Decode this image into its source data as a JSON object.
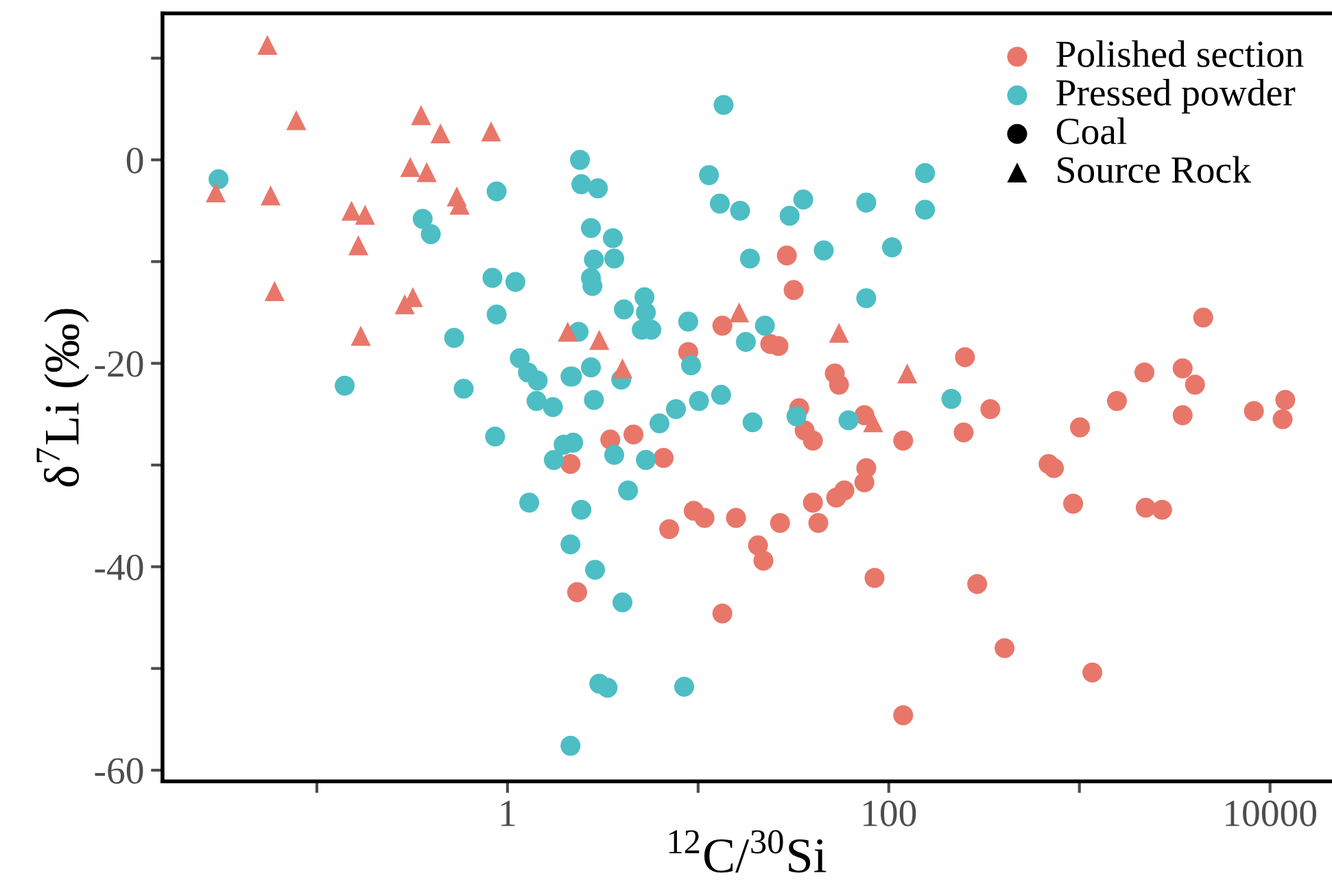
{
  "chart_data": {
    "type": "scatter",
    "xlabel": "$^{12}$C/$^{30}$Si",
    "ylabel": "δ$^{7}$Li (‰)",
    "log": "x",
    "grid": false,
    "legend": "top right",
    "xlim": [
      0.0155,
      20800
    ],
    "ylim": [
      -61.1,
      14.4
    ],
    "xticks": [
      {
        "value": 0.1,
        "label": null
      },
      1,
      {
        "value": 10,
        "label": null
      },
      100,
      {
        "value": 1000,
        "label": null
      },
      10000
    ],
    "yticks": [
      -60,
      {
        "value": -50,
        "label": null
      },
      -40,
      {
        "value": -30,
        "label": null
      },
      -20,
      {
        "value": -10,
        "label": null
      },
      0,
      {
        "value": 10,
        "label": null
      }
    ],
    "series": [
      {
        "name": "Polished section",
        "color": "#e8776a",
        "marker": "circle",
        "x": [
          2.14,
          2.32,
          29.2,
          31.7,
          13.4,
          23.9,
          26.4,
          8.87,
          52.1,
          54.8,
          251,
          33.9,
          3.46,
          4.58,
          6.59,
          36.2,
          40.0,
          74.5,
          119,
          247,
          7.05,
          9.48,
          10.8,
          15.8,
          26.9,
          20.6,
          22.0,
          40.0,
          42.7,
          53.0,
          58.5,
          76.2,
          74.5,
          84.2,
          13.4,
          119,
          291,
          341,
          1007,
          1574,
          3480,
          8230,
          11640,
          12020,
          689,
          735,
          927,
          2228,
          2715,
          405,
          1169,
          4460,
          2193,
          3480,
          4040
        ],
        "values": [
          -29.9,
          -42.5,
          -9.4,
          -12.8,
          -16.3,
          -18.1,
          -18.3,
          -18.9,
          -21.0,
          -22.1,
          -19.4,
          -24.4,
          -27.5,
          -27.0,
          -29.3,
          -26.6,
          -27.6,
          -25.1,
          -27.6,
          -26.8,
          -36.3,
          -34.5,
          -35.2,
          -35.2,
          -35.7,
          -37.9,
          -39.4,
          -33.7,
          -35.7,
          -33.2,
          -32.5,
          -30.3,
          -31.7,
          -41.1,
          -44.6,
          -54.6,
          -41.7,
          -24.5,
          -26.3,
          -23.7,
          -25.1,
          -24.7,
          -25.5,
          -23.6,
          -29.9,
          -30.3,
          -33.8,
          -34.2,
          -34.4,
          -48.0,
          -50.4,
          -15.5,
          -20.9,
          -20.5,
          -22.1
        ]
      },
      {
        "name": "Pressed powder",
        "color": "#4dbec4",
        "marker": "circle",
        "x": [
          0.0305,
          0.877,
          0.359,
          0.396,
          0.834,
          1.1,
          0.877,
          0.525,
          1.16,
          1.28,
          1.44,
          2.14,
          0.14,
          0.589,
          1.42,
          1.73,
          0.861,
          1.97,
          1.75,
          1.3,
          2.14,
          2.14,
          13.6,
          2.4,
          2.44,
          2.98,
          11.4,
          13.0,
          16.6,
          35.6,
          30.2,
          76.2,
          155,
          155,
          2.74,
          3.57,
          2.84,
          3.63,
          2.74,
          2.79,
          18.7,
          45.6,
          104,
          4.08,
          5.23,
          5.32,
          5.06,
          5.68,
          2.36,
          76.2,
          8.87,
          22.4,
          17.8,
          2.74,
          2.18,
          3.95,
          9.18,
          2.84,
          7.65,
          10.1,
          13.2,
          213,
          2.21,
          3.63,
          5.32,
          6.27,
          19.3,
          32.8,
          61.5,
          4.29,
          2.44,
          2.88,
          4.01,
          3.03,
          3.35,
          8.45
        ],
        "values": [
          -1.9,
          -3.1,
          -5.8,
          -7.3,
          -11.6,
          -12.0,
          -15.2,
          -17.5,
          -19.5,
          -20.9,
          -21.7,
          -21.3,
          -22.2,
          -22.5,
          -23.7,
          -24.3,
          -27.2,
          -28.0,
          -29.5,
          -33.7,
          -37.8,
          -57.6,
          5.4,
          0.0,
          -2.4,
          -2.8,
          -1.5,
          -4.3,
          -5.0,
          -3.9,
          -5.5,
          -4.2,
          -1.3,
          -4.9,
          -6.7,
          -7.7,
          -9.8,
          -9.7,
          -11.6,
          -12.4,
          -9.7,
          -8.9,
          -8.6,
          -14.7,
          -13.5,
          -15.0,
          -16.7,
          -16.7,
          -16.9,
          -13.6,
          -15.9,
          -16.3,
          -17.9,
          -20.4,
          -21.3,
          -21.6,
          -20.2,
          -23.6,
          -24.5,
          -23.7,
          -23.1,
          -23.5,
          -27.8,
          -29.0,
          -29.5,
          -25.9,
          -25.8,
          -25.2,
          -25.6,
          -32.5,
          -34.4,
          -40.3,
          -43.5,
          -51.5,
          -51.9,
          -51.8
        ]
      },
      {
        "color": "#e8776a",
        "marker": "triangle",
        "x": [
          0.055,
          0.078,
          0.352,
          0.445,
          0.82,
          0.309,
          0.377,
          0.0295,
          0.0572,
          0.542,
          0.561,
          0.152,
          0.179,
          0.165,
          0.06,
          0.319,
          0.289,
          0.17,
          2.07,
          3.03,
          4.01,
          16.4,
          54.8,
          125,
          82.8
        ],
        "values": [
          11.3,
          3.9,
          4.4,
          2.6,
          2.8,
          -0.7,
          -1.2,
          -3.2,
          -3.5,
          -3.6,
          -4.4,
          -5.0,
          -5.4,
          -8.4,
          -12.9,
          -13.5,
          -14.2,
          -17.3,
          -16.9,
          -17.7,
          -20.5,
          -15.0,
          -17.0,
          -21.0,
          -25.8
        ]
      },
      {
        "name": "Coal",
        "color": "#000000",
        "marker": "circle"
      },
      {
        "name": "Source Rock",
        "color": "#000000",
        "marker": "triangle"
      }
    ]
  }
}
